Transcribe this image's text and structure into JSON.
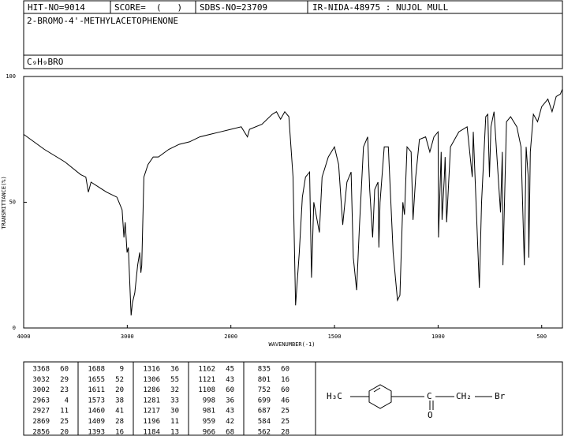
{
  "header": {
    "hit_no": "HIT-NO=9014",
    "score": "SCORE=  (   )",
    "sdbs_no": "SDBS-NO=23709",
    "ir_nida": "IR-NIDA-48975 : NUJOL MULL",
    "name": "2-BROMO-4'-METHYLACETOPHENONE",
    "formula": "C₉H₉BRO"
  },
  "chart_data": {
    "type": "line",
    "xlabel": "WAVENUMBER(-1)",
    "ylabel": "TRANSMITTANCE(%)",
    "xlim": [
      4000,
      400
    ],
    "xticks": [
      4000,
      3000,
      2000,
      1500,
      1000,
      500
    ],
    "ylim": [
      0,
      100
    ],
    "yticks": [
      0,
      50,
      100
    ],
    "color": "#000000",
    "x": [
      4000,
      3800,
      3600,
      3450,
      3400,
      3376,
      3350,
      3200,
      3100,
      3050,
      3032,
      3020,
      3002,
      2990,
      2963,
      2950,
      2927,
      2900,
      2880,
      2869,
      2860,
      2840,
      2800,
      2750,
      2700,
      2600,
      2500,
      2400,
      2300,
      2200,
      2100,
      2000,
      1950,
      1920,
      1910,
      1850,
      1800,
      1780,
      1760,
      1740,
      1720,
      1700,
      1688,
      1670,
      1655,
      1640,
      1620,
      1611,
      1600,
      1573,
      1560,
      1530,
      1500,
      1480,
      1460,
      1440,
      1420,
      1409,
      1393,
      1380,
      1360,
      1340,
      1330,
      1316,
      1306,
      1290,
      1286,
      1280,
      1260,
      1240,
      1217,
      1196,
      1184,
      1170,
      1162,
      1150,
      1130,
      1121,
      1108,
      1090,
      1060,
      1040,
      1020,
      1000,
      998,
      985,
      981,
      970,
      966,
      959,
      940,
      900,
      860,
      835,
      830,
      801,
      790,
      770,
      760,
      752,
      745,
      730,
      699,
      690,
      687,
      670,
      650,
      620,
      600,
      584,
      575,
      565,
      562,
      555,
      540,
      520,
      500,
      470,
      450,
      430,
      410,
      400
    ],
    "values": [
      77,
      71,
      66,
      61,
      60,
      54,
      58,
      54,
      52,
      47,
      36,
      42,
      30,
      32,
      5,
      10,
      14,
      25,
      30,
      22,
      25,
      60,
      65,
      68,
      68,
      71,
      73,
      74,
      76,
      77,
      78,
      79,
      80,
      76,
      79,
      81,
      85,
      86,
      83,
      86,
      84,
      60,
      9,
      30,
      52,
      60,
      62,
      20,
      50,
      38,
      60,
      68,
      72,
      65,
      41,
      58,
      62,
      28,
      15,
      40,
      72,
      76,
      55,
      36,
      55,
      58,
      32,
      50,
      72,
      72,
      30,
      11,
      13,
      50,
      45,
      72,
      70,
      43,
      60,
      75,
      76,
      70,
      76,
      78,
      36,
      70,
      43,
      60,
      68,
      42,
      72,
      78,
      80,
      60,
      78,
      16,
      50,
      84,
      85,
      60,
      80,
      86,
      46,
      70,
      25,
      82,
      84,
      80,
      72,
      25,
      72,
      60,
      28,
      70,
      85,
      82,
      88,
      91,
      86,
      92,
      93,
      95
    ]
  },
  "peak_table": [
    [
      [
        3368,
        60
      ],
      [
        3032,
        29
      ],
      [
        3002,
        23
      ],
      [
        2963,
        4
      ],
      [
        2927,
        11
      ],
      [
        2869,
        25
      ],
      [
        2856,
        20
      ]
    ],
    [
      [
        1688,
        9
      ],
      [
        1655,
        52
      ],
      [
        1611,
        20
      ],
      [
        1573,
        38
      ],
      [
        1460,
        41
      ],
      [
        1409,
        28
      ],
      [
        1393,
        16
      ]
    ],
    [
      [
        1316,
        36
      ],
      [
        1306,
        55
      ],
      [
        1286,
        32
      ],
      [
        1281,
        33
      ],
      [
        1217,
        30
      ],
      [
        1196,
        11
      ],
      [
        1184,
        13
      ]
    ],
    [
      [
        1162,
        45
      ],
      [
        1121,
        43
      ],
      [
        1108,
        60
      ],
      [
        998,
        36
      ],
      [
        981,
        43
      ],
      [
        959,
        42
      ],
      [
        966,
        68
      ]
    ],
    [
      [
        835,
        60
      ],
      [
        801,
        16
      ],
      [
        752,
        60
      ],
      [
        699,
        46
      ],
      [
        687,
        25
      ],
      [
        584,
        25
      ],
      [
        562,
        28
      ]
    ]
  ],
  "structure": {
    "methyl": "H₃C",
    "oxygen": "O",
    "methylene": "CH₂",
    "bromine": "Br"
  }
}
